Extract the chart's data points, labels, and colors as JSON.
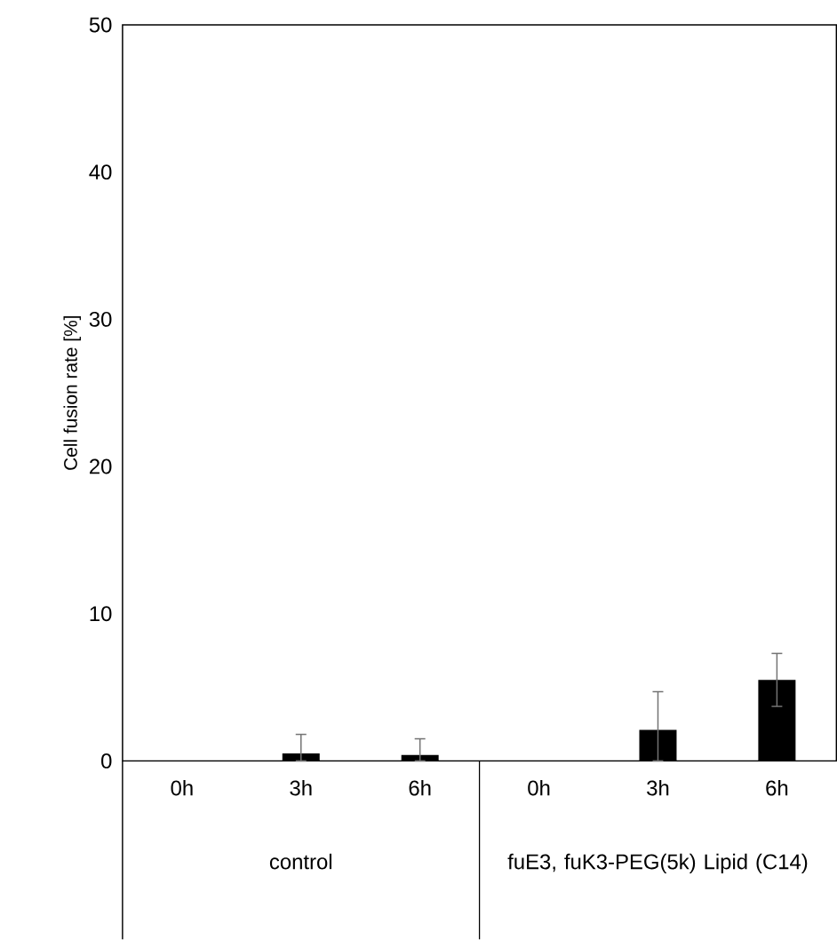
{
  "chart_data": {
    "type": "bar",
    "ylabel": "Cell fusion rate [%]",
    "categories": [
      "0h",
      "3h",
      "6h",
      "0h",
      "3h",
      "6h"
    ],
    "values": [
      0,
      0.5,
      0.4,
      0,
      2.1,
      5.5
    ],
    "errors": [
      null,
      [
        0,
        1.8
      ],
      [
        0,
        1.5
      ],
      null,
      [
        0,
        4.7
      ],
      1.8
    ],
    "color": "#000000",
    "ylim": [
      0,
      50
    ],
    "yticks": [
      0,
      10,
      20,
      30,
      40,
      50
    ],
    "grid": false,
    "annotations": [
      "control",
      "fuE3, fuK3-PEG(5k) Lipid (C14)"
    ]
  }
}
